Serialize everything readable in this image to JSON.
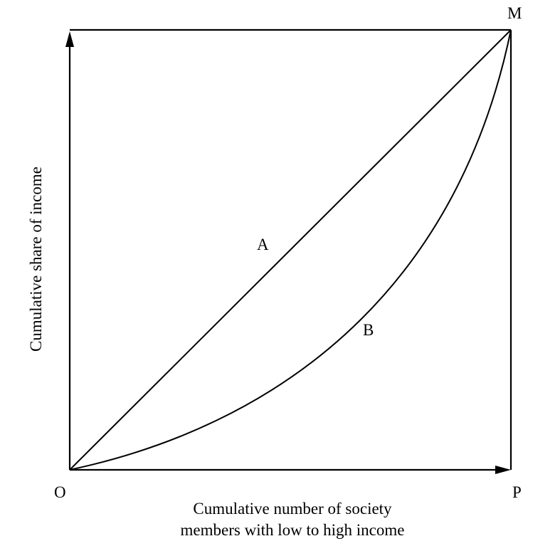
{
  "points": {
    "origin": "O",
    "top_right": "M",
    "bottom_right": "P"
  },
  "curves": {
    "line_label": "A",
    "curve_label": "B"
  },
  "axes": {
    "x_label_line1": "Cumulative number of society",
    "x_label_line2": "members with low to high income",
    "y_label": "Cumulative share of income"
  },
  "colors": {
    "stroke": "#000000",
    "background": "#ffffff"
  }
}
